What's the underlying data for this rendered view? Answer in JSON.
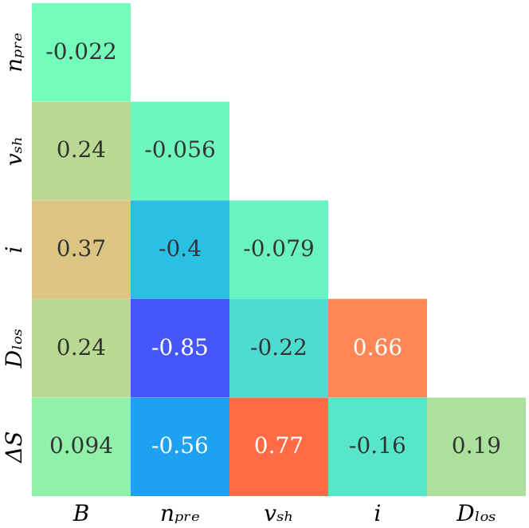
{
  "chart_data": {
    "type": "heatmap",
    "categories": [
      "B",
      "nₚᵣₑ",
      "vₛₕ",
      "i",
      "Dₗₒₛ"
    ],
    "y_categories": [
      "nₚᵣₑ",
      "vₛₕ",
      "i",
      "Dₗₒₛ",
      "ΔS"
    ],
    "cells": [
      [
        -0.022,
        null,
        null,
        null,
        null
      ],
      [
        0.24,
        -0.056,
        null,
        null,
        null
      ],
      [
        0.37,
        -0.4,
        -0.079,
        null,
        null
      ],
      [
        0.24,
        -0.85,
        -0.22,
        0.66,
        null
      ],
      [
        0.094,
        -0.56,
        0.77,
        -0.16,
        0.19
      ]
    ],
    "data_labels": true,
    "legend": false
  }
}
